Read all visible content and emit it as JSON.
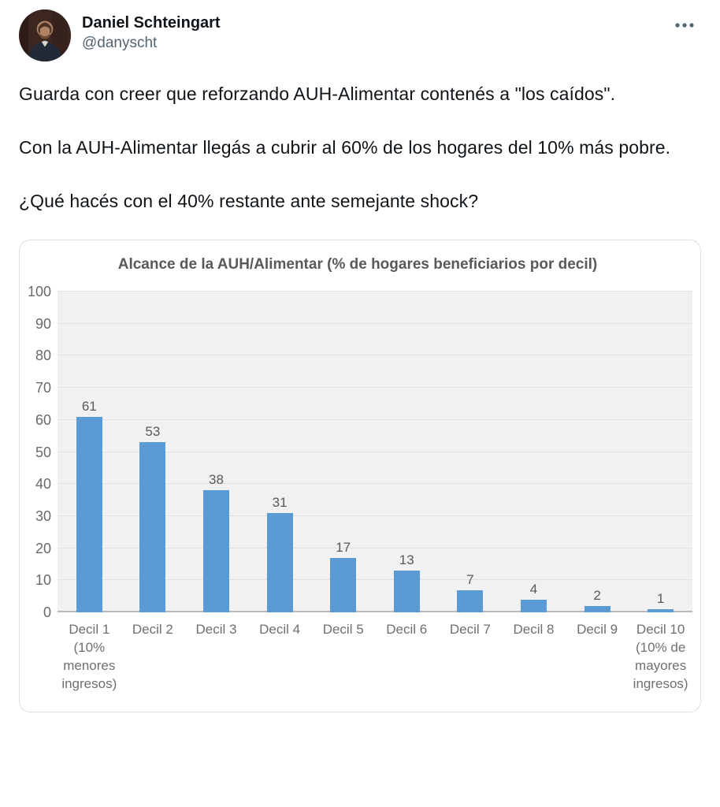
{
  "header": {
    "display_name": "Daniel Schteingart",
    "handle": "@danyscht"
  },
  "tweet": {
    "paragraphs": [
      "Guarda con creer que reforzando AUH-Alimentar contenés a \"los caídos\".",
      "Con la AUH-Alimentar llegás a cubrir al 60% de los hogares del 10% más pobre.",
      "¿Qué hacés con el 40% restante ante semejante shock?"
    ]
  },
  "chart_data": {
    "type": "bar",
    "title": "Alcance de la AUH/Alimentar (% de hogares beneficiarios por decil)",
    "categories": [
      "Decil 1",
      "Decil 2",
      "Decil 3",
      "Decil 4",
      "Decil 5",
      "Decil 6",
      "Decil 7",
      "Decil 8",
      "Decil 9",
      "Decil 10"
    ],
    "category_notes": [
      "(10% menores ingresos)",
      "",
      "",
      "",
      "",
      "",
      "",
      "",
      "",
      "(10% de mayores ingresos)"
    ],
    "values": [
      61,
      53,
      38,
      31,
      17,
      13,
      7,
      4,
      2,
      1
    ],
    "xlabel": "",
    "ylabel": "",
    "ylim": [
      0,
      100
    ],
    "ytick_step": 10,
    "grid": true,
    "legend": false,
    "colors": {
      "bar": "#5b9bd5",
      "plot_background": "#f1f1f2",
      "gridline": "#e0e0e1",
      "axis_line": "#b9babc",
      "chart_text": "#595959"
    }
  }
}
